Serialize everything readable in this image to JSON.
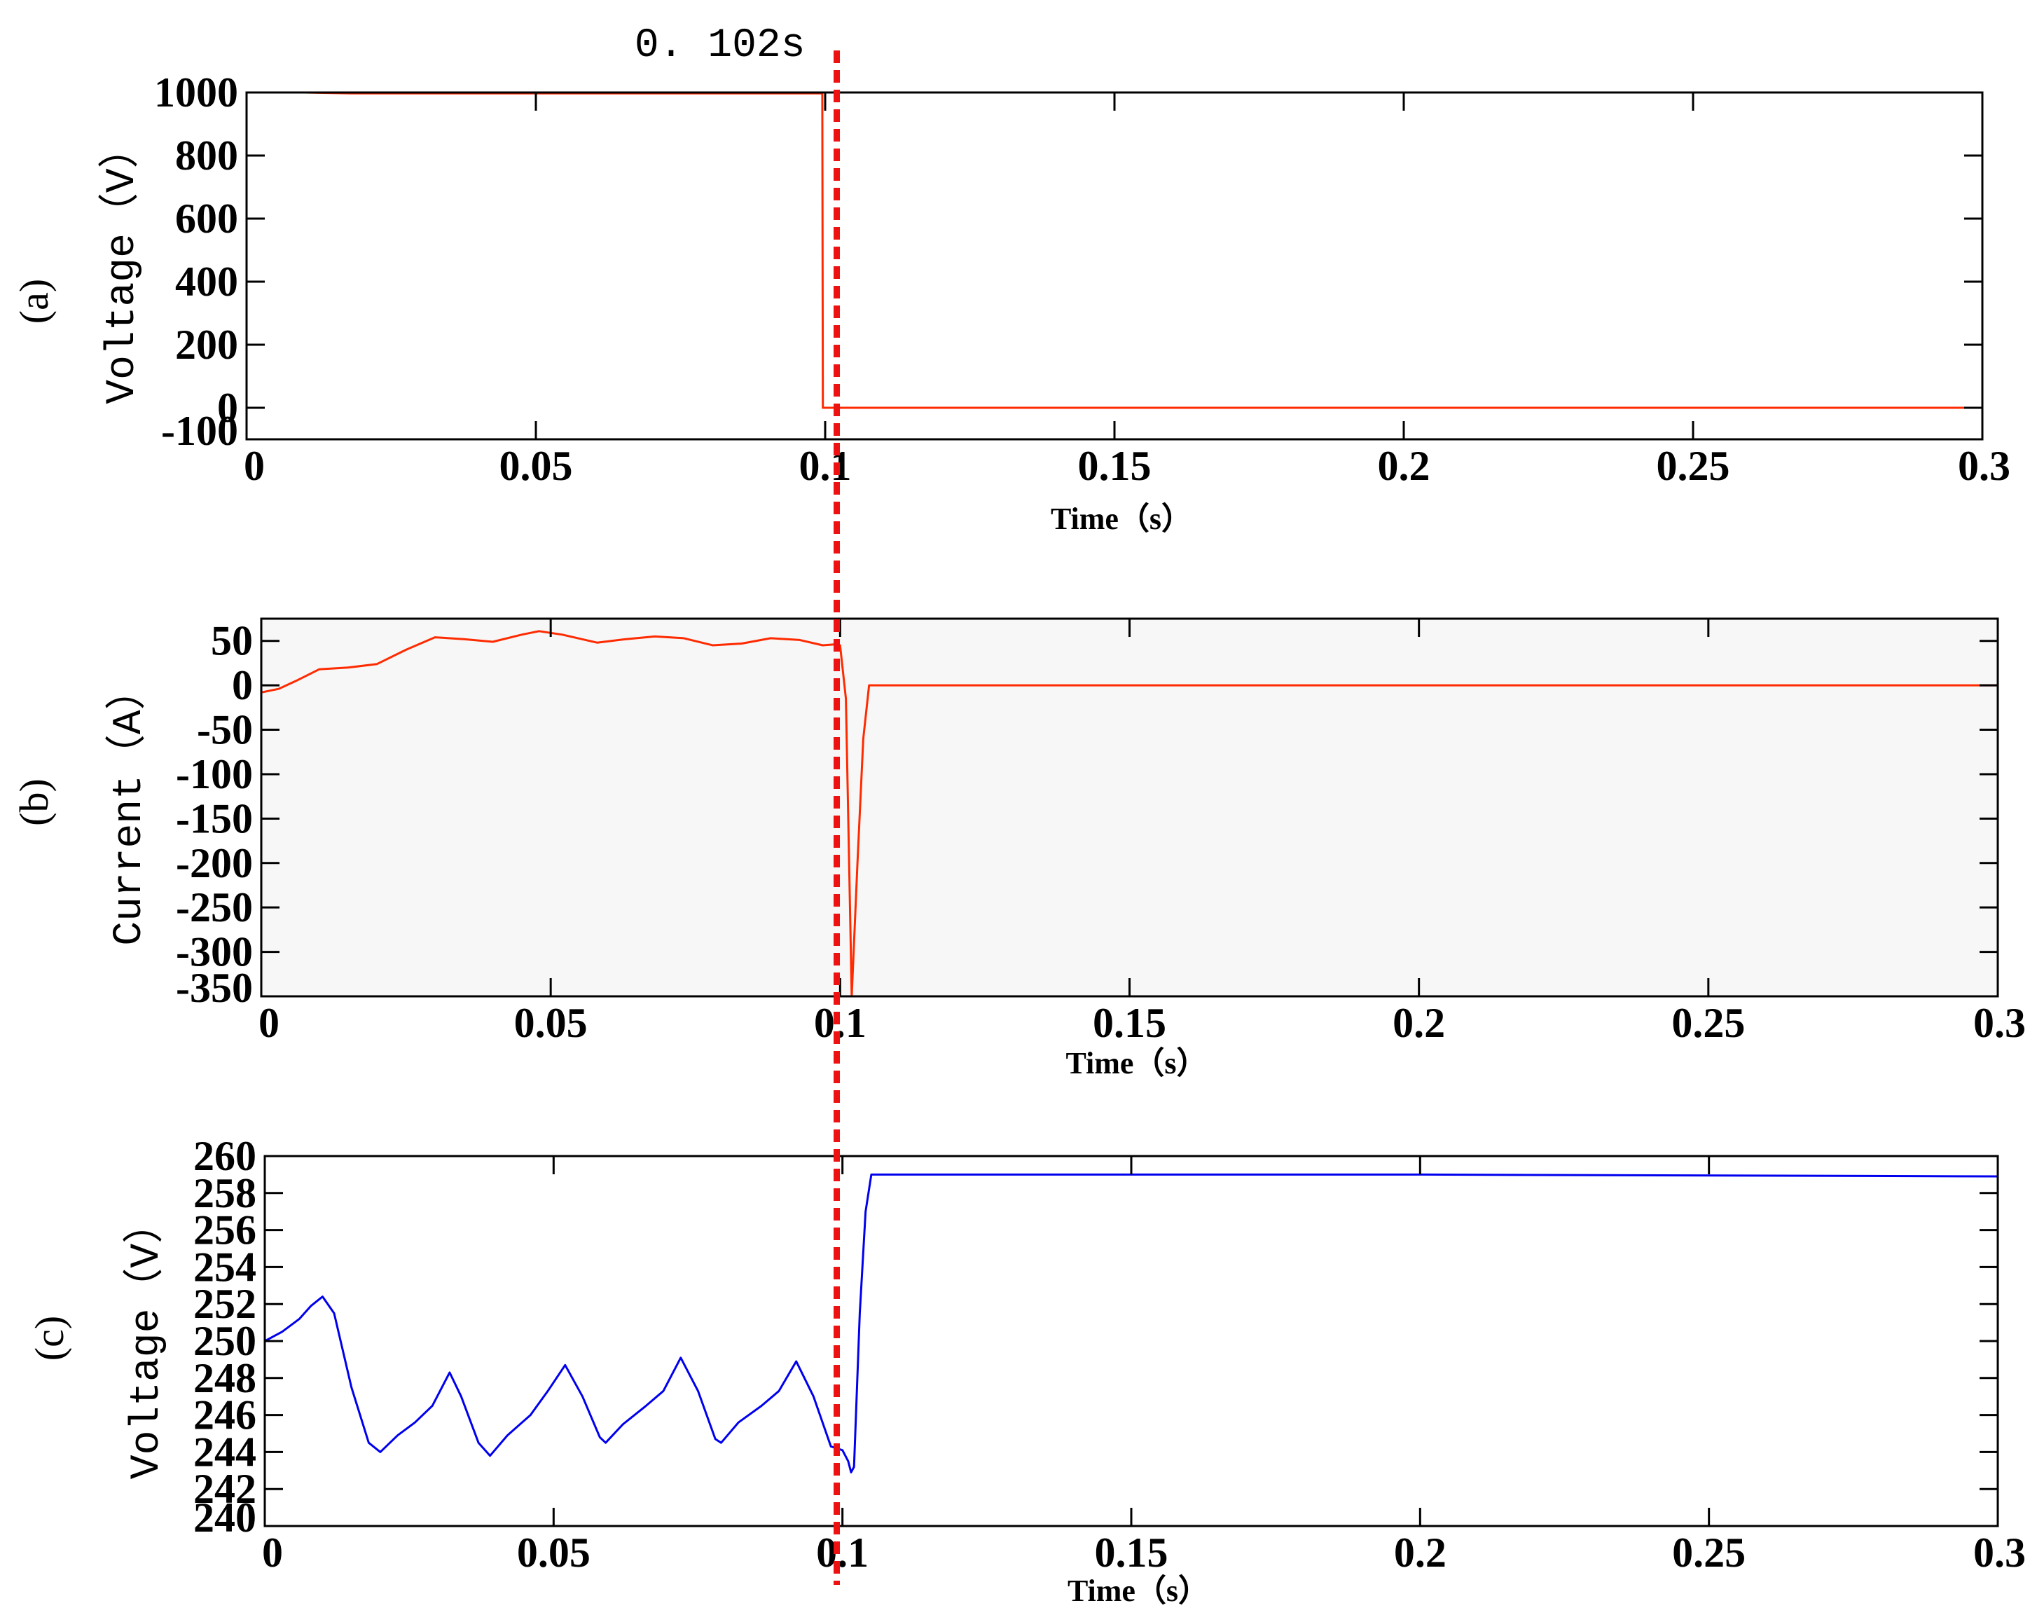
{
  "chart_data": [
    {
      "type": "line",
      "panel_label": "(a)",
      "xlabel": "Time（s）",
      "ylabel": "Voltage（V）",
      "xlim": [
        0,
        0.3
      ],
      "ylim": [
        -100,
        1000
      ],
      "xticks": [
        0,
        0.05,
        0.1,
        0.15,
        0.2,
        0.25,
        0.3
      ],
      "xtick_labels": [
        "0",
        "0.05",
        "0.1",
        "0.15",
        "0.2",
        "0.25",
        "0.3"
      ],
      "yticks": [
        -100,
        0,
        200,
        400,
        600,
        800,
        1000
      ],
      "ytick_labels": [
        "-100",
        "0",
        "200",
        "400",
        "600",
        "800",
        "1000"
      ],
      "background": "#ffffff",
      "series": [
        {
          "color": "#ff2a00",
          "x": [
            0,
            0.01,
            0.018,
            0.05,
            0.0995,
            0.0996,
            0.1,
            0.15,
            0.2,
            0.3
          ],
          "y": [
            1000,
            1000,
            997,
            997,
            997,
            0,
            0,
            0,
            0,
            0
          ]
        }
      ]
    },
    {
      "type": "line",
      "panel_label": "(b)",
      "xlabel": "Time（s）",
      "ylabel": "Current（A）",
      "xlim": [
        0,
        0.3
      ],
      "ylim": [
        -350,
        75
      ],
      "xticks": [
        0,
        0.05,
        0.1,
        0.15,
        0.2,
        0.25,
        0.3
      ],
      "xtick_labels": [
        "0",
        "0.05",
        "0.1",
        "0.15",
        "0.2",
        "0.25",
        "0.3"
      ],
      "yticks": [
        -350,
        -300,
        -250,
        -200,
        -150,
        -100,
        -50,
        0,
        50
      ],
      "ytick_labels": [
        "-350",
        "-300",
        "-250",
        "-200",
        "-150",
        "-100",
        "-50",
        "0",
        "50"
      ],
      "background": "#f7f7f7",
      "series": [
        {
          "color": "#ff2a00",
          "x": [
            0,
            0.003,
            0.006,
            0.01,
            0.015,
            0.02,
            0.025,
            0.03,
            0.035,
            0.04,
            0.045,
            0.048,
            0.052,
            0.058,
            0.063,
            0.068,
            0.073,
            0.078,
            0.083,
            0.088,
            0.093,
            0.097,
            0.099,
            0.1,
            0.101,
            0.1015,
            0.102,
            0.103,
            0.104,
            0.105,
            0.15,
            0.2,
            0.25,
            0.3
          ],
          "y": [
            -8,
            -4,
            5,
            18,
            20,
            24,
            40,
            54,
            52,
            49,
            57,
            61,
            57,
            48,
            52,
            55,
            53,
            45,
            47,
            53,
            51,
            45,
            46,
            45,
            -15,
            -180,
            -350,
            -200,
            -60,
            0,
            0,
            0,
            0,
            0
          ]
        }
      ]
    },
    {
      "type": "line",
      "panel_label": "(c)",
      "xlabel": "Time（s）",
      "ylabel": "Voltage（V）",
      "xlim": [
        0,
        0.3
      ],
      "ylim": [
        240,
        260
      ],
      "xticks": [
        0,
        0.05,
        0.1,
        0.15,
        0.2,
        0.25,
        0.3
      ],
      "xtick_labels": [
        "0",
        "0.05",
        "0.1",
        "0.15",
        "0.2",
        "0.25",
        "0.3"
      ],
      "yticks": [
        240,
        242,
        244,
        246,
        248,
        250,
        252,
        254,
        256,
        258,
        260
      ],
      "ytick_labels": [
        "240",
        "242",
        "244",
        "246",
        "248",
        "250",
        "252",
        "254",
        "256",
        "258",
        "260"
      ],
      "background": "#ffffff",
      "series": [
        {
          "color": "#0000ee",
          "x": [
            0,
            0.003,
            0.006,
            0.008,
            0.01,
            0.012,
            0.015,
            0.018,
            0.02,
            0.023,
            0.026,
            0.029,
            0.032,
            0.034,
            0.037,
            0.039,
            0.042,
            0.046,
            0.049,
            0.052,
            0.055,
            0.058,
            0.059,
            0.062,
            0.066,
            0.069,
            0.072,
            0.075,
            0.078,
            0.079,
            0.082,
            0.086,
            0.089,
            0.092,
            0.095,
            0.098,
            0.1,
            0.101,
            0.1015,
            0.102,
            0.103,
            0.104,
            0.105,
            0.15,
            0.2,
            0.3
          ],
          "y": [
            250,
            250.5,
            251.2,
            251.9,
            252.4,
            251.5,
            247.5,
            244.5,
            244.0,
            244.9,
            245.6,
            246.5,
            248.3,
            247.0,
            244.5,
            243.8,
            244.9,
            246.0,
            247.3,
            248.7,
            247.0,
            244.8,
            244.5,
            245.5,
            246.5,
            247.3,
            249.1,
            247.3,
            244.7,
            244.5,
            245.6,
            246.5,
            247.3,
            248.9,
            247.0,
            244.3,
            244.1,
            243.5,
            242.9,
            243.2,
            251.5,
            257.0,
            259.0,
            259.0,
            259.0,
            258.9
          ]
        }
      ]
    }
  ],
  "marker": {
    "x": 0.102,
    "label": "0. 102s",
    "color": "#ee1111"
  }
}
